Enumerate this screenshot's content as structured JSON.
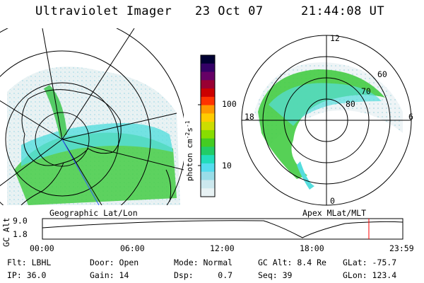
{
  "header": {
    "instrument": "Ultraviolet Imager",
    "date": "23 Oct 07",
    "time": "21:44:08 UT"
  },
  "left_panel": {
    "label": "Geographic Lat/Lon"
  },
  "right_panel": {
    "label": "Apex MLat/MLT",
    "mlt_labels": {
      "top": "12",
      "bottom": "0",
      "left": "18",
      "right": "6"
    },
    "lat_labels": [
      "60",
      "70",
      "80"
    ]
  },
  "colorbar": {
    "unit_label": "photon cm",
    "unit_sup1": "-2",
    "unit_mid": "s",
    "unit_sup2": "-1",
    "tick_labels": [
      "100",
      "10"
    ],
    "colors": [
      "#000033",
      "#330066",
      "#660066",
      "#990033",
      "#cc0000",
      "#ff3300",
      "#ff9900",
      "#ffcc00",
      "#ccdd00",
      "#88dd00",
      "#44cc22",
      "#22cc66",
      "#22ddbb",
      "#55ddee",
      "#99dde8",
      "#cce8ee",
      "#e8f2f4"
    ]
  },
  "altitude_plot": {
    "ylabel": "GC Alt",
    "yticks": [
      "9.0",
      "1.8"
    ],
    "xticks": [
      "00:00",
      "06:00",
      "12:00",
      "18:00",
      "23:59"
    ],
    "current_time_marker_hours": 21.74,
    "marker_color": "#ff0000"
  },
  "info": {
    "flt": "Flt: LBHL",
    "ip": "IP: 36.0",
    "door": "Door: Open",
    "gain": "Gain: 14",
    "mode": "Mode: Normal",
    "dsp": "Dsp:     0.7",
    "gcalt": "GC Alt: 8.4 Re",
    "seq": "Seq: 39",
    "glat": "GLat: -75.7",
    "glon": "GLon: 123.4"
  }
}
